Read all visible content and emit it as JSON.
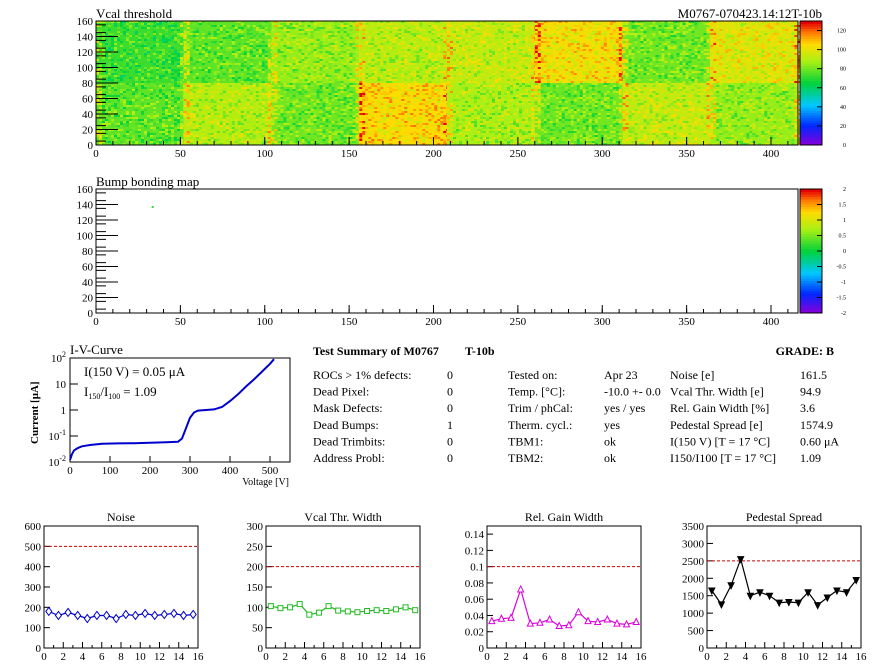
{
  "header": {
    "title": "Vcal threshold",
    "module_id": "M0767-070423.14:12T-10b",
    "bump_title": "Bump bonding map"
  },
  "maps": {
    "x_ticks": [
      "0",
      "50",
      "100",
      "150",
      "200",
      "250",
      "300",
      "350",
      "400"
    ],
    "y_ticks": [
      "0",
      "20",
      "40",
      "60",
      "80",
      "100",
      "120",
      "140",
      "160"
    ],
    "vcal_scale": [
      "0",
      "20",
      "40",
      "60",
      "80",
      "100",
      "120"
    ],
    "bump_scale": [
      "-2",
      "-1.5",
      "-1",
      "-0.5",
      "0",
      "0.5",
      "1",
      "1.5",
      "2"
    ],
    "vcal_level_by_roc": [
      {
        "roc": 0,
        "level": 0.6
      },
      {
        "roc": 1,
        "level": 0.7
      },
      {
        "roc": 2,
        "level": 0.62
      },
      {
        "roc": 3,
        "level": 0.82
      },
      {
        "roc": 4,
        "level": 0.68
      },
      {
        "roc": 5,
        "level": 0.62
      },
      {
        "roc": 6,
        "level": 0.72
      },
      {
        "roc": 7,
        "level": 0.66
      },
      {
        "roc": 8,
        "level": 0.56
      },
      {
        "roc": 9,
        "level": 0.6
      },
      {
        "roc": 10,
        "level": 0.66
      },
      {
        "roc": 11,
        "level": 0.7
      },
      {
        "roc": 12,
        "level": 0.72
      },
      {
        "roc": 13,
        "level": 0.8
      },
      {
        "roc": 14,
        "level": 0.62
      },
      {
        "roc": 15,
        "level": 0.76
      }
    ]
  },
  "iv": {
    "title": "I-V-Curve",
    "line1": "I(150 V) = 0.05 μA",
    "line2_main": "I",
    "line2_sub1": "150",
    "line2_mid": "/I",
    "line2_sub2": "100",
    "line2_val": "=  1.09",
    "ylabel": "Current [μA]",
    "xlabel": "Voltage [V]",
    "x_ticks": [
      "0",
      "100",
      "200",
      "300",
      "400",
      "500"
    ],
    "y_ticks": [
      {
        "base": "10",
        "exp": "-2"
      },
      {
        "base": "10",
        "exp": "-1"
      },
      {
        "base": "1",
        "exp": ""
      },
      {
        "base": "10",
        "exp": ""
      },
      {
        "base": "10",
        "exp": "2"
      }
    ]
  },
  "summary": {
    "title_left": "Test Summary of M0767",
    "title_mid": "T-10b",
    "grade_label": "GRADE:  B",
    "col1": [
      {
        "label": "ROCs > 1% defects:",
        "value": "0"
      },
      {
        "label": "Dead Pixel:",
        "value": "0"
      },
      {
        "label": "Mask Defects:",
        "value": "0"
      },
      {
        "label": "Dead Bumps:",
        "value": "1"
      },
      {
        "label": "Dead Trimbits:",
        "value": "0"
      },
      {
        "label": "Address Probl:",
        "value": "0"
      }
    ],
    "col2": [
      {
        "label": "Tested on:",
        "value": "Apr 23"
      },
      {
        "label": "Temp. [°C]:",
        "value": "-10.0 +- 0.0"
      },
      {
        "label": "Trim / phCal:",
        "value": "yes / yes"
      },
      {
        "label": "Therm. cycl.:",
        "value": "yes"
      },
      {
        "label": "TBM1:",
        "value": "ok"
      },
      {
        "label": "TBM2:",
        "value": "ok"
      }
    ],
    "col3": [
      {
        "label": "Noise [e]",
        "value": "161.5"
      },
      {
        "label": "Vcal Thr. Width [e]",
        "value": "94.9"
      },
      {
        "label": "Rel. Gain Width [%]",
        "value": "3.6"
      },
      {
        "label": "Pedestal Spread [e]",
        "value": "1574.9"
      },
      {
        "label": "I(150 V) [T = 17 °C]",
        "value": "0.60 μA"
      },
      {
        "label": "I150/I100  [T = 17 °C]",
        "value": "1.09"
      }
    ]
  },
  "chart_data": [
    {
      "type": "heatmap",
      "title": "Vcal threshold",
      "xlim": [
        0,
        416
      ],
      "ylim": [
        0,
        160
      ],
      "zlim": [
        0,
        130
      ],
      "rocs_per_row": 8,
      "roc_cols": 52,
      "roc_rows": 80
    },
    {
      "type": "heatmap",
      "title": "Bump bonding map",
      "xlim": [
        0,
        416
      ],
      "ylim": [
        0,
        160
      ],
      "zlim": [
        -2,
        2
      ],
      "points": [
        {
          "x": 33,
          "y": 138,
          "z": 0.2
        }
      ]
    },
    {
      "type": "line",
      "title": "I-V-Curve",
      "xlabel": "Voltage [V]",
      "ylabel": "Current [μA]",
      "xlim": [
        0,
        550
      ],
      "ylim": [
        0.01,
        100
      ],
      "log_y": true,
      "x": [
        0,
        5,
        10,
        20,
        30,
        50,
        80,
        120,
        160,
        200,
        240,
        270,
        280,
        290,
        300,
        310,
        320,
        340,
        360,
        380,
        400,
        420,
        440,
        460,
        480,
        500,
        510
      ],
      "y": [
        0.012,
        0.02,
        0.028,
        0.035,
        0.04,
        0.045,
        0.05,
        0.052,
        0.053,
        0.055,
        0.057,
        0.06,
        0.08,
        0.2,
        0.5,
        0.8,
        0.95,
        1.0,
        1.05,
        1.3,
        2.2,
        4.0,
        8.0,
        15,
        30,
        60,
        90
      ],
      "color": "#0000cc"
    },
    {
      "type": "line",
      "title": "Noise",
      "xlim": [
        0,
        16
      ],
      "ylim": [
        0,
        600
      ],
      "threshold": 500,
      "x": [
        0.5,
        1.5,
        2.5,
        3.5,
        4.5,
        5.5,
        6.5,
        7.5,
        8.5,
        9.5,
        10.5,
        11.5,
        12.5,
        13.5,
        14.5,
        15.5
      ],
      "y": [
        180,
        160,
        175,
        160,
        145,
        160,
        160,
        145,
        165,
        160,
        170,
        160,
        165,
        170,
        160,
        165
      ],
      "color": "#0000cc",
      "marker": "diamond"
    },
    {
      "type": "line",
      "title": "Vcal Thr. Width",
      "xlim": [
        0,
        16
      ],
      "ylim": [
        0,
        300
      ],
      "threshold": 200,
      "x": [
        0.5,
        1.5,
        2.5,
        3.5,
        4.5,
        5.5,
        6.5,
        7.5,
        8.5,
        9.5,
        10.5,
        11.5,
        12.5,
        13.5,
        14.5,
        15.5
      ],
      "y": [
        103,
        98,
        100,
        108,
        82,
        87,
        103,
        92,
        90,
        88,
        91,
        93,
        91,
        95,
        100,
        93
      ],
      "color": "#22bb22",
      "marker": "square"
    },
    {
      "type": "line",
      "title": "Rel. Gain Width",
      "xlim": [
        0,
        16
      ],
      "ylim": [
        0,
        0.15
      ],
      "threshold": 0.1,
      "x": [
        0.5,
        1.5,
        2.5,
        3.5,
        4.5,
        5.5,
        6.5,
        7.5,
        8.5,
        9.5,
        10.5,
        11.5,
        12.5,
        13.5,
        14.5,
        15.5
      ],
      "y": [
        0.033,
        0.036,
        0.037,
        0.072,
        0.03,
        0.031,
        0.035,
        0.027,
        0.028,
        0.044,
        0.033,
        0.032,
        0.035,
        0.03,
        0.029,
        0.032
      ],
      "color": "#dd00dd",
      "marker": "triangle-up"
    },
    {
      "type": "line",
      "title": "Pedestal Spread",
      "xlim": [
        0,
        16
      ],
      "ylim": [
        0,
        3500
      ],
      "threshold": 2500,
      "x": [
        0.5,
        1.5,
        2.5,
        3.5,
        4.5,
        5.5,
        6.5,
        7.5,
        8.5,
        9.5,
        10.5,
        11.5,
        12.5,
        13.5,
        14.5,
        15.5
      ],
      "y": [
        1650,
        1250,
        1800,
        2550,
        1500,
        1600,
        1500,
        1300,
        1320,
        1300,
        1600,
        1230,
        1450,
        1650,
        1600,
        1950
      ],
      "color": "#000000",
      "marker": "triangle-down"
    }
  ]
}
